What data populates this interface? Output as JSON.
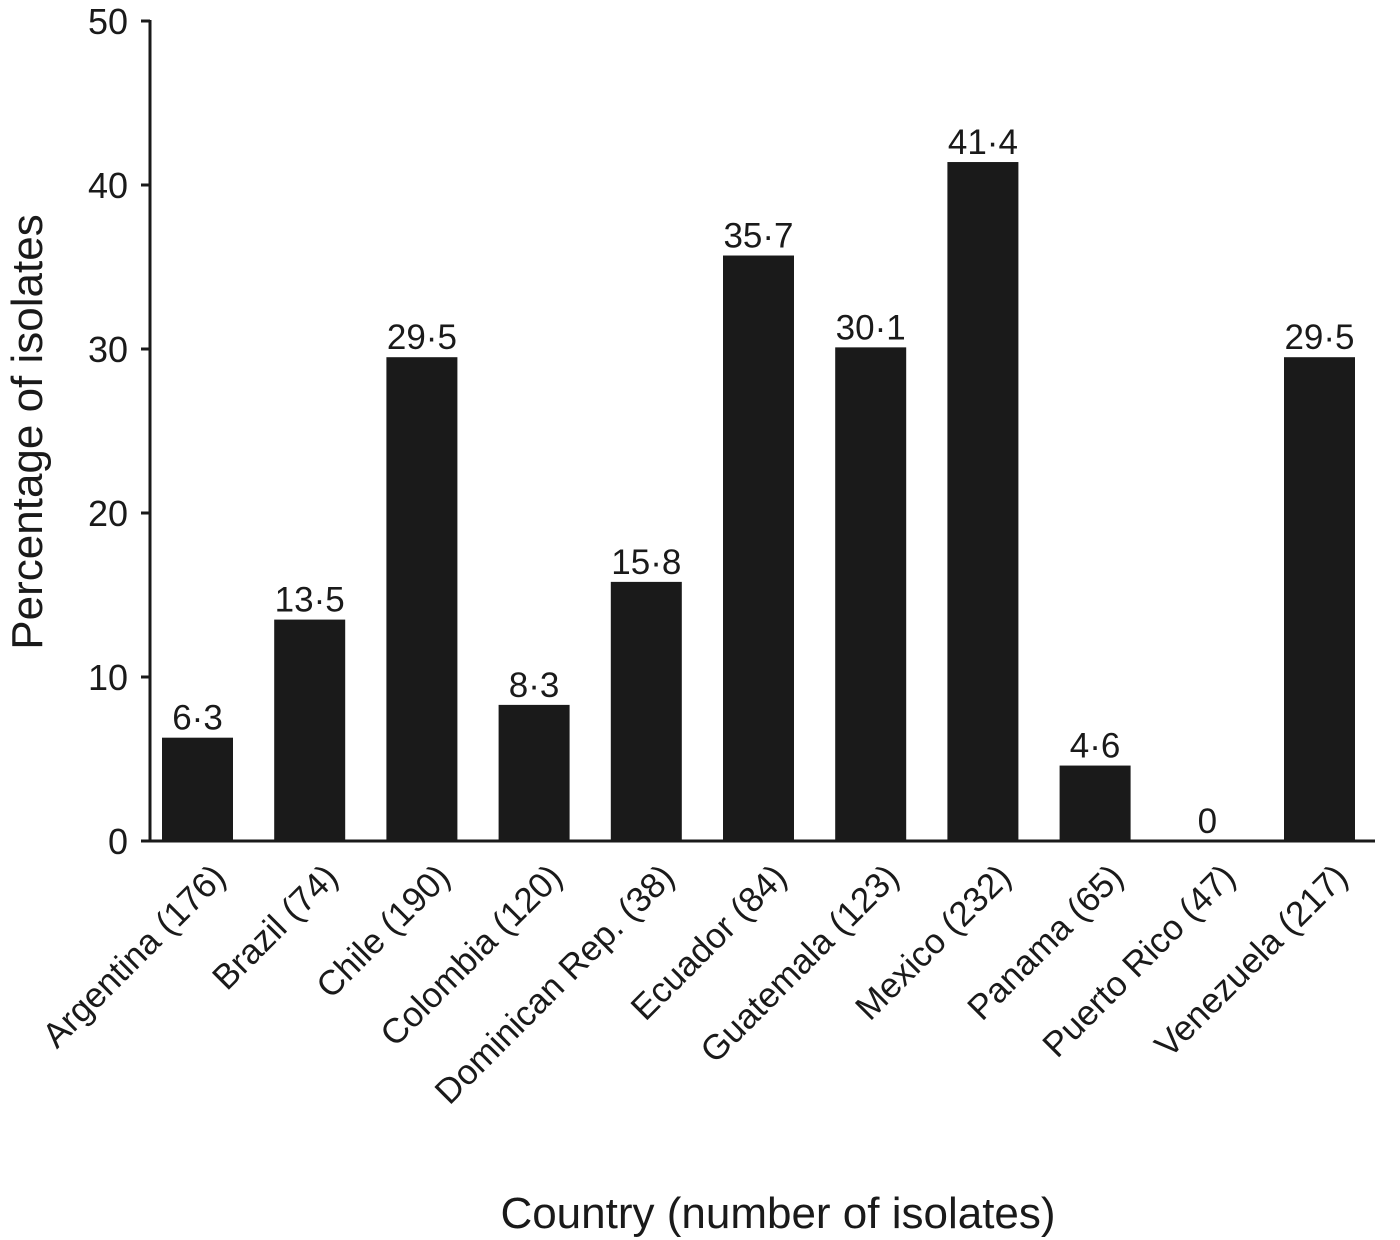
{
  "chart_data": {
    "type": "bar",
    "xlabel": "Country (number of isolates)",
    "ylabel": "Percentage of isolates",
    "ylim": [
      0,
      50
    ],
    "yticks": [
      0,
      10,
      20,
      30,
      40,
      50
    ],
    "grid": false,
    "legend": "none",
    "bar_color": "#1a1a1a",
    "categories": [
      "Argentina (176)",
      "Brazil (74)",
      "Chile (190)",
      "Colombia (120)",
      "Dominican Rep. (38)",
      "Ecuador (84)",
      "Guatemala (123)",
      "Mexico (232)",
      "Panama (65)",
      "Puerto Rico (47)",
      "Venezuela (217)"
    ],
    "values": [
      6.3,
      13.5,
      29.5,
      8.3,
      15.8,
      35.7,
      30.1,
      41.4,
      4.6,
      0,
      29.5
    ],
    "value_labels": [
      "6·3",
      "13·5",
      "29·5",
      "8·3",
      "15·8",
      "35·7",
      "30·1",
      "41·4",
      "4·6",
      "0",
      "29·5"
    ]
  }
}
